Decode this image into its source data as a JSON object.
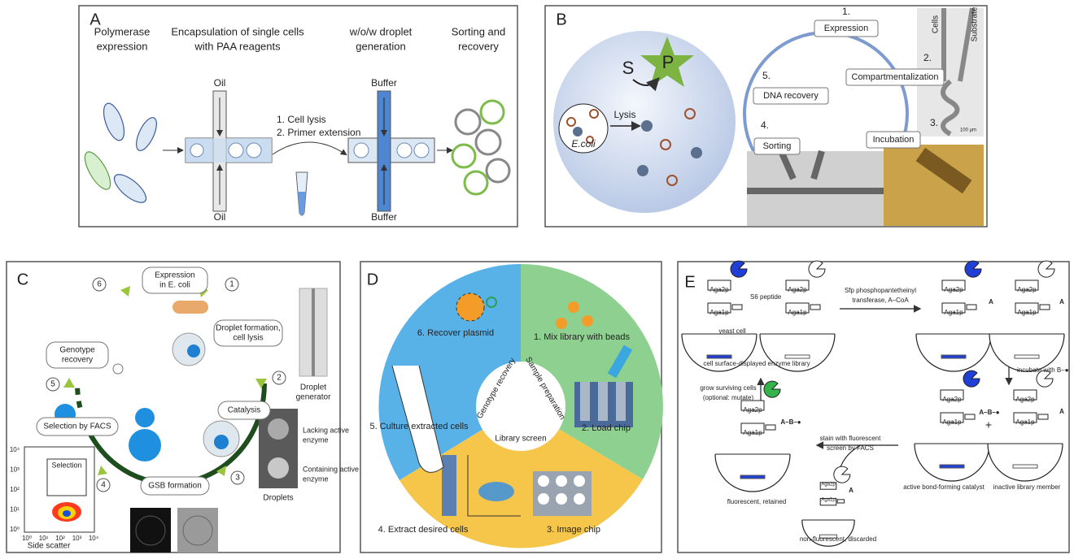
{
  "panel_a": {
    "label": "A",
    "steps": [
      [
        "Polymerase",
        "expression"
      ],
      [
        "Encapsulation of single cells",
        "with PAA reagents"
      ],
      [
        "w/o/w droplet",
        "generation"
      ],
      [
        "Sorting and",
        "recovery"
      ]
    ],
    "oil_top": "Oil",
    "oil_bottom": "Oil",
    "reaction": [
      "1. Cell lysis",
      "2. Primer extension"
    ],
    "buffer_top": "Buffer",
    "buffer_bottom": "Buffer"
  },
  "panel_b": {
    "label": "B",
    "substrate": "S",
    "product": "P",
    "lysis": "Lysis",
    "cell": "E.coli",
    "cycle": [
      {
        "number": "1.",
        "label": "Expression"
      },
      {
        "number": "2.",
        "label": "Compartmentalization"
      },
      {
        "number": "3.",
        "label": "Incubation"
      },
      {
        "number": "4.",
        "label": "Sorting"
      },
      {
        "number": "5.",
        "label": "DNA recovery"
      }
    ],
    "chip_labels": [
      "Cells",
      "Substrate"
    ],
    "scale_bar": "100 µm"
  },
  "panel_c": {
    "label": "C",
    "steps": [
      {
        "number": "1",
        "label": [
          "Expression",
          "in E. coli"
        ]
      },
      {
        "number": "2",
        "label": [
          "Droplet formation,",
          "cell lysis"
        ]
      },
      {
        "number": "3",
        "label": [
          "Catalysis"
        ]
      },
      {
        "number": "4",
        "label": [
          "GSB formation"
        ]
      },
      {
        "number": "5",
        "label": [
          "Selection by FACS"
        ]
      },
      {
        "number": "6",
        "label": [
          "Genotype",
          "recovery"
        ]
      }
    ],
    "droplet_generator": [
      "Droplet",
      "generator"
    ],
    "lacking": [
      "Lacking active",
      "enzyme"
    ],
    "containing": [
      "Containing active",
      "enzyme"
    ],
    "droplets": "Droplets",
    "facs": {
      "gate": "Selection",
      "x_label": "Side scatter",
      "ticks": [
        "10⁰",
        "10¹",
        "10²",
        "10³",
        "10⁴"
      ]
    }
  },
  "panel_d": {
    "label": "D",
    "steps": [
      "1. Mix library with beads",
      "2. Load chip",
      "3. Image chip",
      "4. Extract desired cells",
      "5. Culture extracted cells",
      "6. Recover plasmid"
    ],
    "phases": [
      "Sample preparation",
      "Library screen",
      "Genotype recovery"
    ]
  },
  "panel_e": {
    "label": "E",
    "aga2p": "Aga2p",
    "aga1p": "Aga1p",
    "anchor": "A",
    "product": "A–B–●",
    "s6": "S6 peptide",
    "yeast": "yeast cell",
    "library": "cell surface-displayed enzyme library",
    "sfp": [
      "Sfp phosphopantetheinyl",
      "transferase, A–CoA"
    ],
    "incubate": "incubate with B–●",
    "plus": "+",
    "active": "active bond-forming catalyst",
    "inactive": "inactive library member",
    "stain": [
      "stain with fluorescent",
      "screen by FACS"
    ],
    "grow": [
      "grow surviving cells",
      "(optional: mutate)"
    ],
    "retained": "fluorescent, retained",
    "discarded": "non-fluorescent, discarded"
  }
}
